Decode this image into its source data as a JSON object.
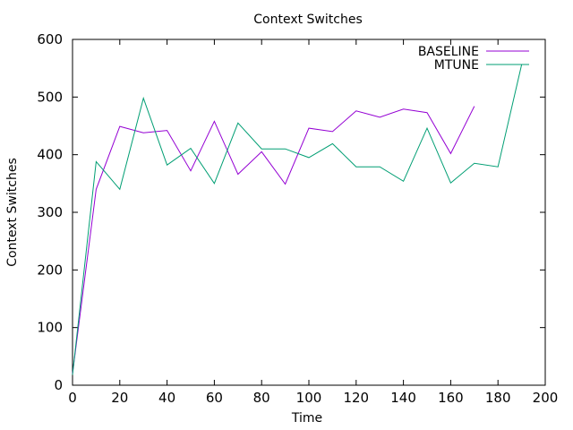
{
  "chart_data": {
    "type": "line",
    "title": "Context Switches",
    "xlabel": "Time",
    "ylabel": "Context Switches",
    "xlim": [
      0,
      200
    ],
    "ylim": [
      0,
      600
    ],
    "xticks": [
      0,
      20,
      40,
      60,
      80,
      100,
      120,
      140,
      160,
      180,
      200
    ],
    "yticks": [
      0,
      100,
      200,
      300,
      400,
      500,
      600
    ],
    "grid": false,
    "legend_position": "top-right",
    "series": [
      {
        "name": "BASELINE",
        "color": "#9400d3",
        "x": [
          0,
          10,
          20,
          30,
          40,
          50,
          60,
          70,
          80,
          90,
          100,
          110,
          120,
          130,
          140,
          150,
          160,
          170
        ],
        "y": [
          20,
          340,
          449,
          438,
          442,
          372,
          458,
          366,
          405,
          349,
          446,
          440,
          476,
          465,
          479,
          473,
          402,
          484
        ]
      },
      {
        "name": "MTUNE",
        "color": "#009e73",
        "x": [
          0,
          10,
          20,
          30,
          40,
          50,
          60,
          70,
          80,
          90,
          100,
          110,
          120,
          130,
          140,
          150,
          160,
          170,
          180,
          190
        ],
        "y": [
          18,
          388,
          340,
          498,
          382,
          411,
          350,
          455,
          410,
          410,
          395,
          419,
          379,
          379,
          354,
          446,
          351,
          385,
          379,
          556
        ]
      }
    ]
  }
}
